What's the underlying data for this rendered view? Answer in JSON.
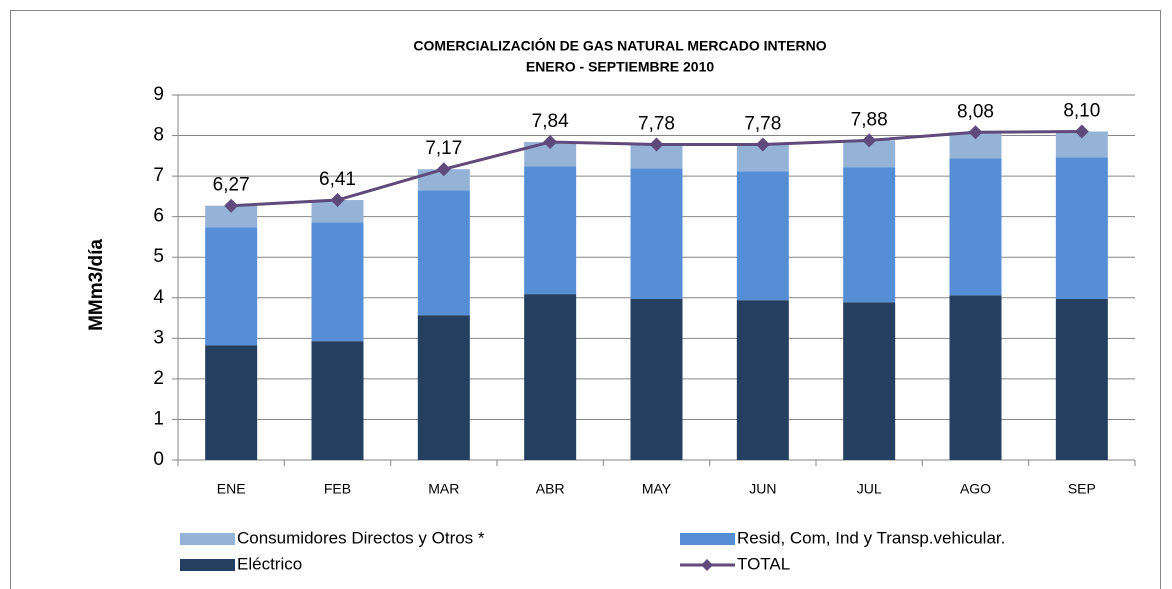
{
  "chart_data": {
    "type": "bar",
    "stacked": true,
    "title": "COMERCIALIZACIÓN DE GAS NATURAL MERCADO INTERNO",
    "subtitle": "ENERO - SEPTIEMBRE 2010",
    "y_label": "MMm3/día",
    "categories": [
      "ENE",
      "FEB",
      "MAR",
      "ABR",
      "MAY",
      "JUN",
      "JUL",
      "AGO",
      "SEP"
    ],
    "series": [
      {
        "name": "Eléctrico",
        "type": "bar",
        "color": "#243f60",
        "values": [
          2.83,
          2.93,
          3.57,
          4.09,
          3.97,
          3.94,
          3.89,
          4.06,
          3.97
        ]
      },
      {
        "name": "Resid, Com, Ind y Transp.vehicular.",
        "type": "bar",
        "color": "#558ed5",
        "values": [
          2.91,
          2.93,
          3.08,
          3.15,
          3.22,
          3.18,
          3.33,
          3.38,
          3.49
        ]
      },
      {
        "name": "Consumidores Directos y Otros *",
        "type": "bar",
        "color": "#95b3d7",
        "values": [
          0.53,
          0.55,
          0.52,
          0.6,
          0.59,
          0.66,
          0.66,
          0.64,
          0.64
        ]
      },
      {
        "name": "TOTAL",
        "type": "line",
        "color": "#604a7b",
        "values": [
          6.27,
          6.41,
          7.17,
          7.84,
          7.78,
          7.78,
          7.88,
          8.08,
          8.1
        ],
        "value_labels": [
          "6,27",
          "6,41",
          "7,17",
          "7,84",
          "7,78",
          "7,78",
          "7,88",
          "8,08",
          "8,10"
        ]
      }
    ],
    "ylim": [
      0,
      9
    ],
    "yticks": [
      0,
      1,
      2,
      3,
      4,
      5,
      6,
      7,
      8,
      9
    ],
    "grid": true,
    "legend": "bottom"
  }
}
